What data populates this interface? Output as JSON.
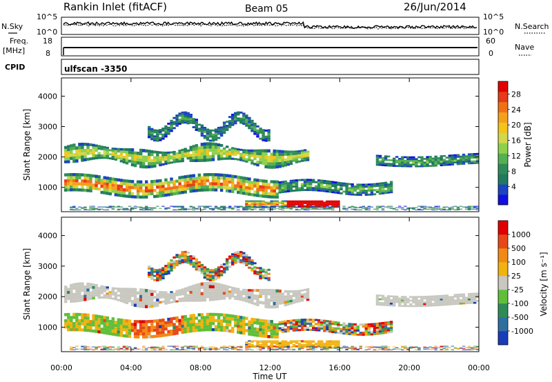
{
  "header": {
    "station": "Rankin Inlet (fitACF)",
    "beam": "Beam 05",
    "date": "26/Jun/2014"
  },
  "strip": {
    "nsky_label": "N.Sky",
    "nsky_ticks": [
      "10^5",
      "10^0"
    ],
    "nsearch_label": "N.Search",
    "nsearch_ticks": [
      "10^5",
      "10^0"
    ],
    "freq_label": "Freq.",
    "freq_unit": "[MHz]",
    "freq_ticks": [
      "18",
      "8"
    ],
    "nave_label": "Nave",
    "nave_ticks": [
      "60",
      "0"
    ],
    "cpid_label": "CPID",
    "cpid_value": "ulfscan -3350"
  },
  "chart_data": [
    {
      "type": "heatmap",
      "name": "power",
      "ylabel": "Slant Range [km]",
      "yticks": [
        1000,
        2000,
        3000,
        4000
      ],
      "ylim": [
        200,
        4600
      ],
      "colorbar_label": "Power [dB]",
      "colorbar_ticks": [
        "28",
        "24",
        "20",
        "16",
        "12",
        "8",
        "4"
      ],
      "colors": [
        "#1010e0",
        "#1c44c0",
        "#1f7a60",
        "#2e8b57",
        "#55b050",
        "#8fd04a",
        "#d2d84a",
        "#f3c41a",
        "#f5a01c",
        "#f07018",
        "#e83a18",
        "#e00000"
      ]
    },
    {
      "type": "heatmap",
      "name": "velocity",
      "ylabel": "Slant Range [km]",
      "yticks": [
        1000,
        2000,
        3000,
        4000
      ],
      "ylim": [
        200,
        4600
      ],
      "colorbar_label": "Velocity [m s⁻¹]",
      "colorbar_ticks": [
        "1000",
        "500",
        "100",
        "25",
        "-25",
        "-100",
        "-500",
        "-1000"
      ],
      "colors": [
        "#1a3cb8",
        "#2e6fa0",
        "#2e8b57",
        "#5fbf3a",
        "#c8c8c0",
        "#f2b20f",
        "#f08a14",
        "#e84818",
        "#e00000"
      ]
    }
  ],
  "x_axis": {
    "label": "Time UT",
    "ticks": [
      "00:00",
      "04:00",
      "08:00",
      "12:00",
      "16:00",
      "20:00",
      "00:00"
    ]
  }
}
